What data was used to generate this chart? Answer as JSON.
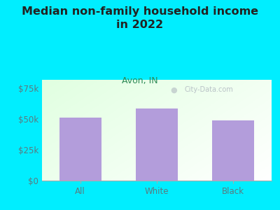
{
  "title": "Median non-family household income\nin 2022",
  "subtitle": "Avon, IN",
  "categories": [
    "All",
    "White",
    "Black"
  ],
  "values": [
    51500,
    58500,
    49000
  ],
  "bar_color": "#b39ddb",
  "background_outer": "#00eeff",
  "title_color": "#222222",
  "subtitle_color": "#2e8b57",
  "tick_color": "#5a7a80",
  "yticks": [
    0,
    25000,
    50000,
    75000
  ],
  "ytick_labels": [
    "$0",
    "$25k",
    "$50k",
    "$75k"
  ],
  "ylim": [
    0,
    82000
  ],
  "watermark": "City-Data.com",
  "title_fontsize": 11.5,
  "subtitle_fontsize": 9,
  "tick_fontsize": 8.5
}
